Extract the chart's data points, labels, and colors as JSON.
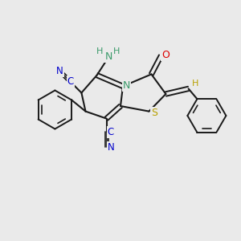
{
  "bg_color": "#eaeaea",
  "bond_color": "#1a1a1a",
  "n_color": "#3a9a6a",
  "s_color": "#b8a000",
  "o_color": "#dd0000",
  "c_label_color": "#0000cc",
  "figsize": [
    3.0,
    3.0
  ],
  "dpi": 100,
  "xlim": [
    0,
    10
  ],
  "ylim": [
    0,
    10
  ]
}
